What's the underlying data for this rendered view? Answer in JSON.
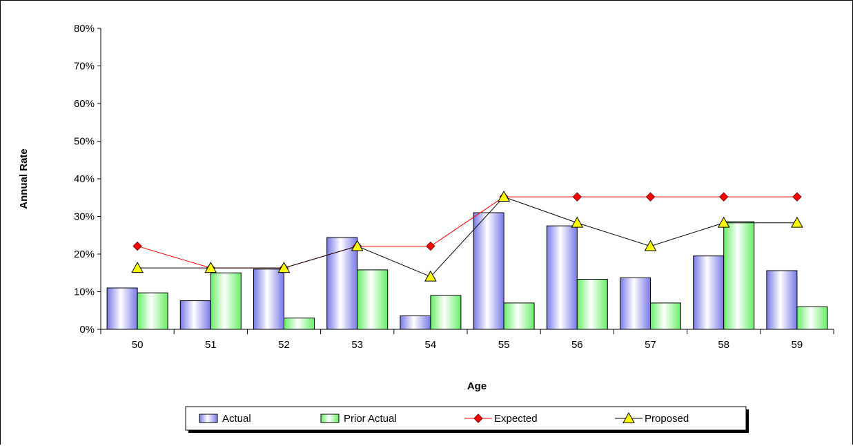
{
  "chart_data": {
    "type": "bar",
    "xlabel": "Age",
    "ylabel": "Annual Rate",
    "categories": [
      "50",
      "51",
      "52",
      "53",
      "54",
      "55",
      "56",
      "57",
      "58",
      "59"
    ],
    "ylim": [
      0,
      80
    ],
    "yticks": [
      "0%",
      "10%",
      "20%",
      "30%",
      "40%",
      "50%",
      "60%",
      "70%",
      "80%"
    ],
    "grid": false,
    "legend_position": "bottom",
    "series": [
      {
        "name": "Actual",
        "kind": "bar",
        "color": "#8c8cf0",
        "values": [
          11.0,
          7.6,
          16.0,
          24.4,
          3.6,
          31.0,
          27.5,
          13.7,
          19.5,
          15.6
        ]
      },
      {
        "name": "Prior Actual",
        "kind": "bar",
        "color": "#80f080",
        "values": [
          9.7,
          15.0,
          3.0,
          15.8,
          9.0,
          7.0,
          13.3,
          7.0,
          28.6,
          6.0
        ]
      },
      {
        "name": "Expected",
        "kind": "line",
        "color": "#ff0000",
        "marker": "diamond",
        "values": [
          22.1,
          16.3,
          16.3,
          22.1,
          22.1,
          35.2,
          35.2,
          35.2,
          35.2,
          35.2
        ]
      },
      {
        "name": "Proposed",
        "kind": "line",
        "color": "#000000",
        "marker": "triangle",
        "values": [
          16.3,
          16.3,
          16.3,
          22.1,
          14.0,
          35.2,
          28.3,
          22.1,
          28.3,
          28.3
        ]
      }
    ]
  }
}
